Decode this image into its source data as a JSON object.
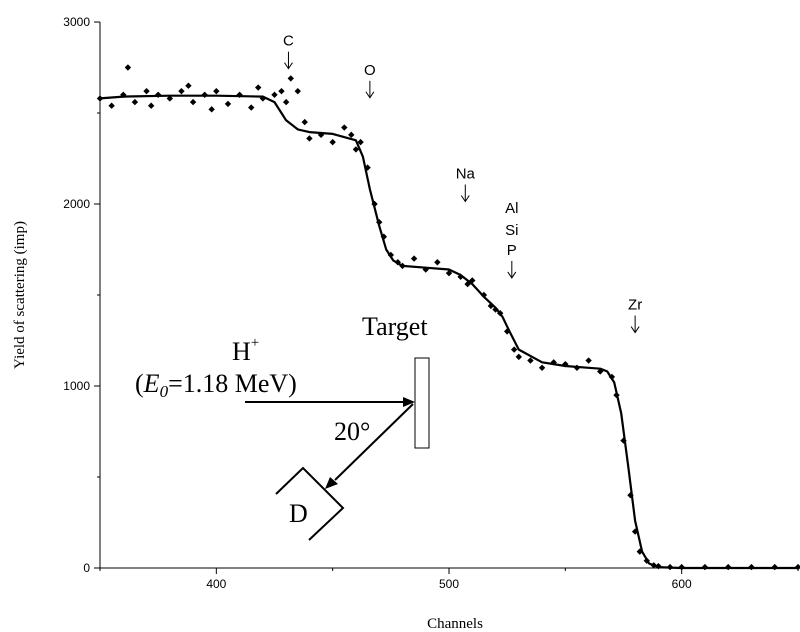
{
  "chart_data": {
    "type": "scatter",
    "title": "",
    "xlabel": "Channels",
    "ylabel": "Yield of scattering (imp)",
    "xlim": [
      350,
      650
    ],
    "ylim": [
      0,
      3000
    ],
    "xticks": [
      400,
      500,
      600
    ],
    "yticks": [
      0,
      1000,
      2000,
      3000
    ],
    "grid": false,
    "series": [
      {
        "style": "markers",
        "marker": "diamond",
        "x": [
          350,
          355,
          360,
          362,
          365,
          370,
          372,
          375,
          380,
          385,
          388,
          390,
          395,
          398,
          400,
          405,
          410,
          415,
          418,
          420,
          425,
          428,
          430,
          432,
          435,
          438,
          440,
          445,
          450,
          455,
          458,
          460,
          462,
          465,
          468,
          470,
          472,
          475,
          478,
          480,
          485,
          490,
          495,
          500,
          505,
          508,
          510,
          515,
          518,
          520,
          522,
          525,
          528,
          530,
          535,
          540,
          545,
          550,
          555,
          560,
          565,
          570,
          572,
          575,
          578,
          580,
          582,
          585,
          588,
          590,
          595,
          600,
          610,
          620,
          630,
          640,
          650
        ],
        "y": [
          2580,
          2540,
          2600,
          2750,
          2560,
          2620,
          2540,
          2600,
          2580,
          2620,
          2650,
          2560,
          2600,
          2520,
          2620,
          2550,
          2600,
          2530,
          2640,
          2580,
          2600,
          2620,
          2560,
          2690,
          2620,
          2450,
          2360,
          2380,
          2340,
          2420,
          2380,
          2300,
          2340,
          2200,
          2000,
          1900,
          1820,
          1720,
          1680,
          1660,
          1700,
          1640,
          1680,
          1620,
          1600,
          1560,
          1580,
          1500,
          1440,
          1420,
          1400,
          1300,
          1200,
          1160,
          1140,
          1100,
          1130,
          1120,
          1100,
          1140,
          1080,
          1050,
          950,
          700,
          400,
          200,
          90,
          40,
          15,
          10,
          5,
          5,
          5,
          5,
          5,
          5,
          5
        ]
      },
      {
        "style": "line",
        "x": [
          350,
          360,
          380,
          400,
          420,
          425,
          430,
          435,
          440,
          450,
          460,
          463,
          466,
          470,
          473,
          476,
          480,
          490,
          500,
          505,
          510,
          515,
          520,
          523,
          526,
          530,
          540,
          550,
          560,
          565,
          568,
          571,
          574,
          577,
          580,
          583,
          586,
          590,
          595,
          600,
          650
        ],
        "y": [
          2580,
          2590,
          2595,
          2595,
          2590,
          2560,
          2460,
          2410,
          2395,
          2385,
          2350,
          2260,
          2080,
          1880,
          1750,
          1690,
          1660,
          1650,
          1640,
          1610,
          1560,
          1490,
          1430,
          1380,
          1300,
          1200,
          1130,
          1110,
          1100,
          1095,
          1080,
          1020,
          850,
          560,
          260,
          90,
          25,
          5,
          2,
          0,
          0
        ]
      }
    ],
    "annotations": [
      {
        "text": "C",
        "x": 431,
        "y": 2870
      },
      {
        "text": "O",
        "x": 466,
        "y": 2710
      },
      {
        "text": "Na",
        "x": 507,
        "y": 2140
      },
      {
        "text": "Al",
        "x": 527,
        "y": 1950
      },
      {
        "text": "Si",
        "x": 527,
        "y": 1830
      },
      {
        "text": "P",
        "x": 527,
        "y": 1720
      },
      {
        "text": "Zr",
        "x": 580,
        "y": 1420
      }
    ],
    "inset": {
      "ion": "H",
      "ion_charge": "+",
      "energy_label_open": "(",
      "energy_symbol": "E",
      "energy_subscript": "0",
      "energy_value": "=1.18 MeV)",
      "target_label": "Target",
      "angle_label": "20°",
      "detector_label": "D"
    }
  },
  "colors": {
    "ink": "#000000",
    "background": "#ffffff"
  }
}
